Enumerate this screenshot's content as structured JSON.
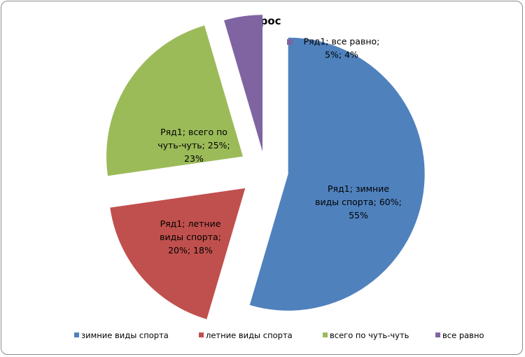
{
  "chart_data": {
    "type": "pie",
    "title": "Опрос",
    "exploded": true,
    "legend_position": "bottom",
    "series": [
      {
        "name": "Ряд1",
        "categories": [
          "зимние виды спорта",
          "летние виды спорта",
          "всего по чуть-чуть",
          "все равно"
        ],
        "values": [
          60,
          20,
          25,
          5
        ],
        "percents": [
          55,
          18,
          23,
          4
        ],
        "colors": [
          "#4f81bd",
          "#c0504d",
          "#9bbb59",
          "#8064a2"
        ]
      }
    ],
    "data_labels": [
      [
        "Ряд1; зимние",
        "виды спорта; 60%;",
        "55%"
      ],
      [
        "Ряд1; летние",
        "виды спорта;",
        "20%; 18%"
      ],
      [
        "Ряд1; всего по",
        "чуть-чуть; 25%;",
        "23%"
      ],
      [
        "Ряд1; все равно;",
        "5%; 4%"
      ]
    ],
    "legend": [
      "зимние виды спорта",
      "летние виды спорта",
      "всего по чуть-чуть",
      "все равно"
    ]
  }
}
